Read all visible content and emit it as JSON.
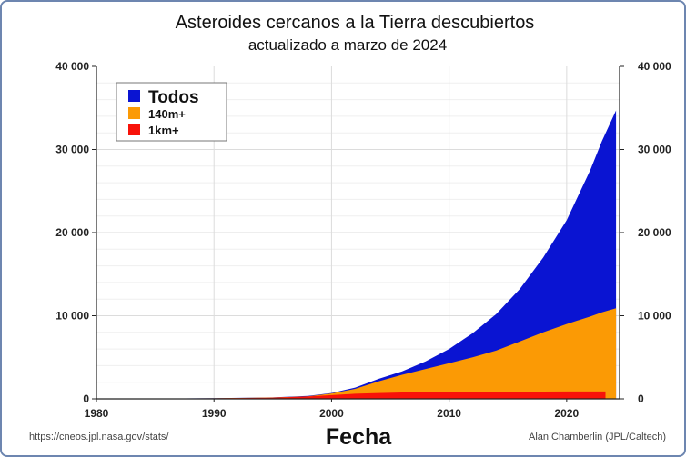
{
  "chart_data": {
    "type": "area",
    "title": "Asteroides cercanos a la Tierra descubiertos",
    "subtitle": "actualizado a marzo de 2024",
    "xlabel": "Fecha",
    "ylabel": "",
    "xlim": [
      1980,
      2024.5
    ],
    "ylim": [
      0,
      40000
    ],
    "x_ticks": [
      "1980",
      "1990",
      "2000",
      "2010",
      "2020"
    ],
    "y_ticks": [
      "0",
      "10 000",
      "20 000",
      "30 000",
      "40 000"
    ],
    "grid": true,
    "legend_position": "top-left",
    "series": [
      {
        "name": "Todos",
        "color": "#0a14d2",
        "x": [
          1980,
          1985,
          1990,
          1995,
          1998,
          2000,
          2002,
          2004,
          2006,
          2008,
          2010,
          2012,
          2014,
          2016,
          2018,
          2020,
          2022,
          2023,
          2024.2
        ],
        "values": [
          0,
          30,
          80,
          180,
          350,
          700,
          1350,
          2400,
          3300,
          4500,
          6000,
          7900,
          10200,
          13200,
          17000,
          21500,
          27500,
          31000,
          34700
        ]
      },
      {
        "name": "140m+",
        "color": "#fb9a05",
        "x": [
          1980,
          1985,
          1990,
          1995,
          1998,
          2000,
          2002,
          2004,
          2006,
          2008,
          2010,
          2012,
          2014,
          2016,
          2018,
          2020,
          2022,
          2023,
          2024.2
        ],
        "values": [
          0,
          25,
          70,
          160,
          300,
          650,
          1200,
          2100,
          2900,
          3600,
          4300,
          5000,
          5800,
          6900,
          8000,
          9000,
          9900,
          10400,
          10900
        ]
      },
      {
        "name": "1km+",
        "color": "#f81209",
        "x": [
          1980,
          1985,
          1990,
          1995,
          1998,
          2000,
          2002,
          2004,
          2006,
          2008,
          2010,
          2012,
          2014,
          2016,
          2018,
          2020,
          2022,
          2023.3
        ],
        "values": [
          0,
          15,
          50,
          130,
          280,
          450,
          610,
          700,
          760,
          800,
          830,
          850,
          860,
          868,
          875,
          880,
          885,
          890
        ]
      }
    ]
  },
  "source_left": "https://cneos.jpl.nasa.gov/stats/",
  "source_right": "Alan Chamberlin (JPL/Caltech)"
}
